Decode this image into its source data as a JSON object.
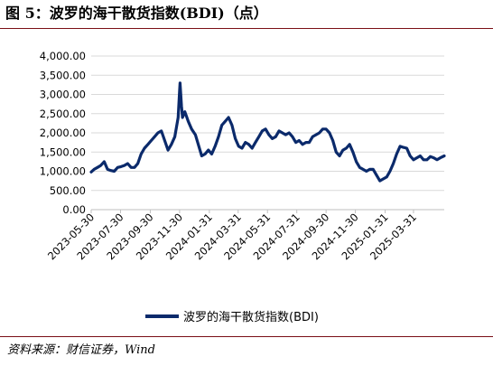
{
  "title": "图 5：波罗的海干散货指数(BDI)（点）",
  "source": "资料来源：财信证券，Wind",
  "chart_data": {
    "type": "line",
    "title": "",
    "xlabel": "",
    "ylabel": "",
    "ylim": [
      0,
      4000
    ],
    "yticks": [
      "0.00",
      "500.00",
      "1,000.00",
      "1,500.00",
      "2,000.00",
      "2,500.00",
      "3,000.00",
      "3,500.00",
      "4,000.00"
    ],
    "xticks": [
      "2023-05-30",
      "2023-07-30",
      "2023-09-30",
      "2023-11-30",
      "2024-01-31",
      "2024-03-31",
      "2024-05-31",
      "2024-07-31",
      "2024-09-30",
      "2024-11-30",
      "2025-01-31",
      "2025-03-31"
    ],
    "grid": true,
    "legend": "bottom",
    "line_color": "#0b2a6b",
    "series": [
      {
        "name": "波罗的海干散货指数(BDI)",
        "x": [
          "2023-05-30",
          "2023-06-05",
          "2023-06-12",
          "2023-06-19",
          "2023-06-26",
          "2023-07-03",
          "2023-07-10",
          "2023-07-17",
          "2023-07-24",
          "2023-07-31",
          "2023-08-07",
          "2023-08-14",
          "2023-08-21",
          "2023-08-28",
          "2023-09-04",
          "2023-09-11",
          "2023-09-18",
          "2023-09-25",
          "2023-10-02",
          "2023-10-09",
          "2023-10-16",
          "2023-10-23",
          "2023-10-30",
          "2023-11-06",
          "2023-11-13",
          "2023-11-20",
          "2023-11-27",
          "2023-11-30",
          "2023-12-01",
          "2023-12-04",
          "2023-12-06",
          "2023-12-11",
          "2023-12-18",
          "2023-12-25",
          "2024-01-02",
          "2024-01-08",
          "2024-01-15",
          "2024-01-22",
          "2024-01-29",
          "2024-02-05",
          "2024-02-12",
          "2024-02-19",
          "2024-02-26",
          "2024-03-04",
          "2024-03-11",
          "2024-03-18",
          "2024-03-25",
          "2024-04-01",
          "2024-04-08",
          "2024-04-15",
          "2024-04-22",
          "2024-04-29",
          "2024-05-06",
          "2024-05-13",
          "2024-05-20",
          "2024-05-27",
          "2024-06-03",
          "2024-06-10",
          "2024-06-17",
          "2024-06-24",
          "2024-07-01",
          "2024-07-08",
          "2024-07-15",
          "2024-07-22",
          "2024-07-29",
          "2024-08-05",
          "2024-08-12",
          "2024-08-19",
          "2024-08-26",
          "2024-09-02",
          "2024-09-09",
          "2024-09-16",
          "2024-09-23",
          "2024-09-30",
          "2024-10-07",
          "2024-10-14",
          "2024-10-21",
          "2024-10-28",
          "2024-11-04",
          "2024-11-11",
          "2024-11-18",
          "2024-11-25",
          "2024-12-02",
          "2024-12-09",
          "2024-12-16",
          "2024-12-23",
          "2024-12-30",
          "2025-01-06",
          "2025-01-13",
          "2025-01-20",
          "2025-01-27",
          "2025-02-03",
          "2025-02-10",
          "2025-02-17",
          "2025-02-24",
          "2025-03-03",
          "2025-03-10",
          "2025-03-17",
          "2025-03-24",
          "2025-03-31",
          "2025-04-07",
          "2025-04-14",
          "2025-04-21",
          "2025-04-28",
          "2025-05-05",
          "2025-05-12",
          "2025-05-19",
          "2025-05-26",
          "2025-06-03"
        ],
        "values": [
          980,
          1050,
          1100,
          1150,
          1250,
          1050,
          1020,
          1000,
          1100,
          1120,
          1150,
          1200,
          1100,
          1100,
          1200,
          1450,
          1600,
          1700,
          1800,
          1900,
          2000,
          2050,
          1800,
          1550,
          1700,
          1900,
          2400,
          3100,
          3300,
          2700,
          2400,
          2550,
          2300,
          2100,
          1950,
          1700,
          1400,
          1450,
          1550,
          1450,
          1650,
          1900,
          2200,
          2300,
          2400,
          2200,
          1850,
          1650,
          1600,
          1750,
          1700,
          1600,
          1750,
          1900,
          2050,
          2100,
          1950,
          1850,
          1900,
          2050,
          2000,
          1950,
          2000,
          1900,
          1750,
          1800,
          1700,
          1750,
          1750,
          1900,
          1950,
          2000,
          2100,
          2100,
          2000,
          1800,
          1500,
          1400,
          1550,
          1600,
          1700,
          1500,
          1250,
          1100,
          1050,
          1000,
          1050,
          1050,
          900,
          750,
          800,
          850,
          1000,
          1200,
          1450,
          1650,
          1620,
          1600,
          1400,
          1300,
          1350,
          1400,
          1300,
          1300,
          1380,
          1350,
          1300,
          1350,
          1400
        ]
      }
    ]
  }
}
